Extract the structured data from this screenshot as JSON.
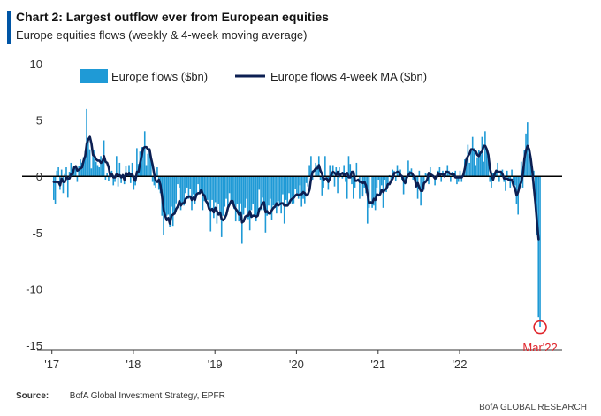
{
  "header": {
    "title": "Chart 2: Largest outflow ever from European equities",
    "subtitle": "Europe equities flows (weekly & 4-week moving average)"
  },
  "footer": {
    "source_label": "Source:",
    "source_text": "BofA Global Investment Strategy, EPFR",
    "brand": "BofA GLOBAL RESEARCH"
  },
  "colors": {
    "bar": "#1f9ad6",
    "ma_line": "#0c1f52",
    "annotation": "#e0242b",
    "accent": "#0055a5"
  },
  "chart_data": {
    "type": "bar",
    "title": "",
    "xlabel": "",
    "ylabel": "",
    "ylim": [
      -15,
      10
    ],
    "yticks": [
      10,
      5,
      0,
      -5,
      -10,
      -15
    ],
    "xtick_labels": [
      "'17",
      "'18",
      "'19",
      "'20",
      "'21",
      "'22"
    ],
    "x_start": "2017-01-06",
    "x_end": "2022-12-31",
    "legend_position": "top-left",
    "grid": false,
    "annotation": "Mar'22",
    "series": [
      {
        "name": "Europe flows ($bn)",
        "type": "bar",
        "values": [
          -2.1,
          -2.5,
          0.5,
          0.8,
          -1.2,
          0.6,
          -1.5,
          0.2,
          0.8,
          -1.9,
          0.4,
          1.2,
          0.5,
          0.9,
          0.8,
          -0.5,
          0.9,
          1.5,
          1.2,
          1.7,
          2.2,
          6.0,
          3.2,
          2.4,
          0.7,
          1.9,
          2.3,
          1.3,
          1.0,
          0.8,
          1.8,
          1.4,
          3.2,
          -0.3,
          0.3,
          -0.4,
          0.4,
          0.5,
          -0.8,
          -0.5,
          1.8,
          -0.9,
          1.2,
          -0.6,
          0.0,
          -0.7,
          0.9,
          0.1,
          1.0,
          -0.6,
          1.2,
          -1.2,
          -0.8,
          2.5,
          1.1,
          2.2,
          2.6,
          2.6,
          4.0,
          1.0,
          2.0,
          2.4,
          1.8,
          -0.5,
          -0.8,
          -1.0,
          0.8,
          -1.2,
          -1.5,
          -3.5,
          -5.2,
          -3.5,
          -3.5,
          -3.4,
          -4.5,
          -2.7,
          -4.4,
          -3.4,
          -2.4,
          -0.7,
          -1.0,
          -3.0,
          -2.5,
          -2.6,
          -1.5,
          -1.0,
          -2.0,
          -1.1,
          -3.0,
          -1.6,
          -2.5,
          -1.5,
          -0.7,
          -1.5,
          -1.3,
          -3.0,
          -2.2,
          -2.2,
          -2.1,
          -2.8,
          -4.9,
          -2.1,
          -3.7,
          -2.3,
          -4.2,
          -2.5,
          -3.1,
          -5.4,
          -3.5,
          -2.7,
          -2.0,
          -3.0,
          -1.5,
          -2.5,
          -2.3,
          -2.9,
          -4.0,
          -2.5,
          -4.0,
          -2.4,
          -6.0,
          -3.4,
          -2.8,
          -2.0,
          -3.8,
          -4.8,
          -3.0,
          -2.5,
          -3.6,
          -4.0,
          -3.4,
          -1.2,
          -3.0,
          -1.9,
          -3.0,
          -5.0,
          -3.5,
          -2.6,
          -2.0,
          -3.9,
          -2.6,
          -2.7,
          -3.3,
          -2.2,
          -2.5,
          -3.3,
          -1.6,
          -4.2,
          -2.1,
          -2.7,
          -1.5,
          -2.0,
          -2.5,
          -2.4,
          -1.1,
          -1.5,
          -2.0,
          -0.8,
          -2.7,
          -2.0,
          -2.4,
          -0.6,
          -0.9,
          1.0,
          1.8,
          -0.3,
          0.0,
          1.2,
          1.0,
          1.8,
          -0.3,
          -1.7,
          -1.0,
          1.8,
          -0.3,
          -1.2,
          1.0,
          0.3,
          1.0,
          -0.9,
          0.8,
          -1.5,
          0.8,
          0.2,
          -0.2,
          1.0,
          -0.5,
          -2.0,
          1.8,
          1.1,
          -0.7,
          -2.0,
          -1.0,
          1.2,
          0.0,
          -2.0,
          0.0,
          -1.8,
          -1.0,
          -1.5,
          -4.2,
          -2.8,
          0.0,
          -2.8,
          -2.6,
          -3.0,
          -1.0,
          -0.3,
          -1.6,
          -0.8,
          -2.8,
          -0.3,
          -1.4,
          -1.0,
          0.1,
          -0.5,
          0.6,
          0.5,
          -0.4,
          1.0,
          0.3,
          0.6,
          -0.3,
          -1.6,
          -0.7,
          -0.6,
          1.4,
          0.5,
          0.7,
          -0.3,
          -0.2,
          -0.7,
          -2.0,
          0.5,
          -2.6,
          -1.0,
          -1.2,
          0.3,
          0.2,
          -0.7,
          0.8,
          0.2,
          0.0,
          -0.8,
          -0.3,
          0.5,
          0.8,
          -0.5,
          0.5,
          0.0,
          0.1,
          1.0,
          0.5,
          -0.5,
          0.4,
          0.2,
          0.5,
          -0.7,
          -0.5,
          0.5,
          -0.5,
          0.0,
          1.5,
          1.7,
          2.8,
          1.2,
          2.2,
          3.5,
          2.5,
          1.0,
          1.7,
          2.3,
          1.9,
          3.5,
          1.3,
          4.0,
          2.5,
          1.8,
          -0.5,
          -1.0,
          0.3,
          0.0,
          0.5,
          1.2,
          -0.5,
          0.3,
          0.6,
          -0.5,
          -1.3,
          0.5,
          -0.3,
          -1.0,
          0.6,
          -0.3,
          -0.8,
          -2.5,
          -3.4,
          -1.0,
          1.3,
          -1.0,
          2.3,
          3.8,
          4.8,
          2.0,
          1.8,
          0.6,
          0.5,
          -2.0,
          -5.2,
          -12.5,
          -13.4
        ]
      },
      {
        "name": "Europe flows 4-week MA ($bn)",
        "type": "line",
        "values": [
          -0.5,
          -0.5,
          -0.5,
          -0.5,
          -0.8,
          -0.2,
          -0.5,
          -0.5,
          -0.1,
          -0.2,
          -0.2,
          0.2,
          0.2,
          0.8,
          0.9,
          0.5,
          0.6,
          0.7,
          0.8,
          1.4,
          1.8,
          2.9,
          3.3,
          3.5,
          2.9,
          1.9,
          1.8,
          1.5,
          1.4,
          1.4,
          1.2,
          1.3,
          1.8,
          1.3,
          1.2,
          0.8,
          0.0,
          0.2,
          -0.1,
          -0.1,
          0.2,
          0.1,
          0.1,
          -0.1,
          0.1,
          -0.3,
          0.3,
          0.1,
          0.3,
          0.1,
          0.2,
          -0.2,
          -0.4,
          0.4,
          0.4,
          1.2,
          1.8,
          2.5,
          2.6,
          2.6,
          2.4,
          2.4,
          1.6,
          1.0,
          0.2,
          -0.4,
          -0.5,
          -0.3,
          -0.8,
          -1.8,
          -3.0,
          -3.5,
          -3.9,
          -3.7,
          -4.2,
          -3.5,
          -3.4,
          -3.3,
          -2.9,
          -2.7,
          -2.2,
          -2.6,
          -2.4,
          -2.4,
          -2.0,
          -1.9,
          -1.8,
          -1.8,
          -2.1,
          -1.9,
          -2.1,
          -1.6,
          -1.5,
          -1.5,
          -1.2,
          -1.6,
          -1.7,
          -2.2,
          -2.4,
          -2.9,
          -3.0,
          -2.9,
          -3.2,
          -2.8,
          -3.1,
          -3.4,
          -3.2,
          -3.8,
          -3.9,
          -3.7,
          -3.4,
          -2.8,
          -2.5,
          -2.2,
          -2.2,
          -2.7,
          -2.9,
          -3.1,
          -3.4,
          -3.2,
          -4.1,
          -4.0,
          -3.6,
          -3.5,
          -3.5,
          -3.1,
          -3.6,
          -3.5,
          -3.5,
          -3.6,
          -3.5,
          -2.9,
          -2.8,
          -2.4,
          -2.3,
          -3.2,
          -3.1,
          -3.3,
          -3.3,
          -3.0,
          -2.8,
          -2.7,
          -2.4,
          -2.6,
          -2.5,
          -2.4,
          -2.4,
          -2.6,
          -2.6,
          -2.6,
          -2.4,
          -2.1,
          -2.0,
          -1.9,
          -1.7,
          -1.6,
          -1.7,
          -1.6,
          -1.6,
          -1.4,
          -1.5,
          -1.7,
          -1.6,
          -1.2,
          -0.2,
          0.4,
          0.5,
          0.7,
          0.7,
          1.0,
          0.5,
          0.2,
          -0.3,
          -0.2,
          -0.2,
          -0.5,
          -0.2,
          0.2,
          0.4,
          0.3,
          0.1,
          0.4,
          0.0,
          0.2,
          0.3,
          0.1,
          0.2,
          0.3,
          -0.1,
          -0.1,
          0.4,
          0.4,
          -0.4,
          -0.4,
          -0.3,
          -0.5,
          -0.5,
          -0.6,
          -0.5,
          -0.8,
          -1.6,
          -2.4,
          -2.3,
          -2.4,
          -2.0,
          -2.1,
          -1.6,
          -1.7,
          -1.6,
          -1.2,
          -1.4,
          -1.2,
          -1.1,
          -0.7,
          -0.7,
          -0.4,
          -0.2,
          0.3,
          0.3,
          0.4,
          0.4,
          0.1,
          0.0,
          -0.4,
          -0.6,
          -0.1,
          0.1,
          0.3,
          0.3,
          0.1,
          -0.1,
          -0.9,
          -0.6,
          -1.0,
          -1.3,
          -1.3,
          -0.6,
          -0.5,
          -0.3,
          0.3,
          0.2,
          0.1,
          0.0,
          -0.2,
          -0.1,
          0.3,
          0.1,
          0.2,
          0.2,
          0.0,
          0.4,
          0.4,
          0.3,
          0.2,
          0.2,
          0.2,
          -0.1,
          -0.1,
          -0.1,
          -0.1,
          -0.1,
          0.1,
          0.7,
          1.5,
          1.8,
          2.0,
          2.4,
          2.4,
          2.3,
          2.2,
          1.9,
          1.8,
          2.1,
          2.2,
          2.7,
          2.7,
          2.4,
          1.9,
          0.7,
          0.1,
          -0.3,
          0.2,
          0.5,
          0.4,
          0.4,
          0.4,
          0.2,
          -0.2,
          -0.2,
          -0.2,
          -0.3,
          -0.3,
          -0.3,
          -0.8,
          -1.1,
          -1.7,
          -1.4,
          -0.8,
          -0.5,
          0.2,
          1.6,
          2.3,
          2.7,
          2.4,
          1.6,
          0.5,
          -1.0,
          -2.4,
          -4.1,
          -5.6
        ]
      }
    ]
  }
}
